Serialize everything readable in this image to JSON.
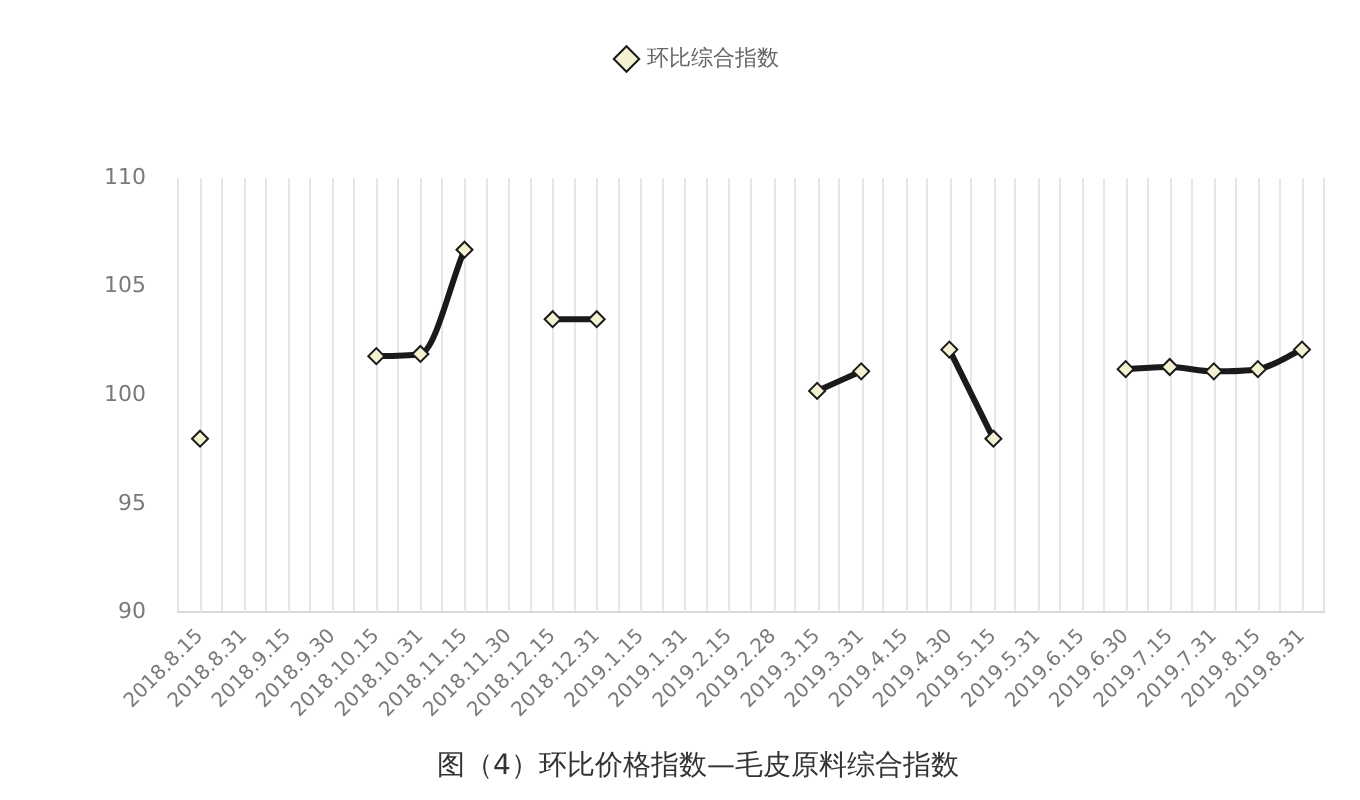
{
  "chart_data": {
    "type": "line",
    "title": "图（4）环比价格指数—毛皮原料综合指数",
    "categories": [
      "2018.8.15",
      "2018.8.31",
      "2018.9.15",
      "2018.9.30",
      "2018.10.15",
      "2018.10.31",
      "2018.11.15",
      "2018.11.30",
      "2018.12.15",
      "2018.12.31",
      "2019.1.15",
      "2019.1.31",
      "2019.2.15",
      "2019.2.28",
      "2019.3.15",
      "2019.3.31",
      "2019.4.15",
      "2019.4.30",
      "2019.5.15",
      "2019.5.31",
      "2019.6.15",
      "2019.6.30",
      "2019.7.15",
      "2019.7.31",
      "2019.8.15",
      "2019.8.31"
    ],
    "series": [
      {
        "name": "环比综合指数",
        "color": "#1a1a1a",
        "values": [
          98.0,
          null,
          null,
          null,
          101.8,
          101.9,
          106.7,
          null,
          103.5,
          103.5,
          null,
          null,
          null,
          null,
          100.2,
          101.1,
          null,
          102.1,
          98.0,
          null,
          null,
          101.2,
          101.3,
          101.1,
          101.2,
          102.1
        ]
      }
    ],
    "ylim": [
      90,
      110
    ],
    "yticks": [
      90,
      95,
      100,
      105,
      110
    ],
    "grid": "x",
    "legend": "top",
    "marker": "diamond",
    "line_style": "solid"
  }
}
